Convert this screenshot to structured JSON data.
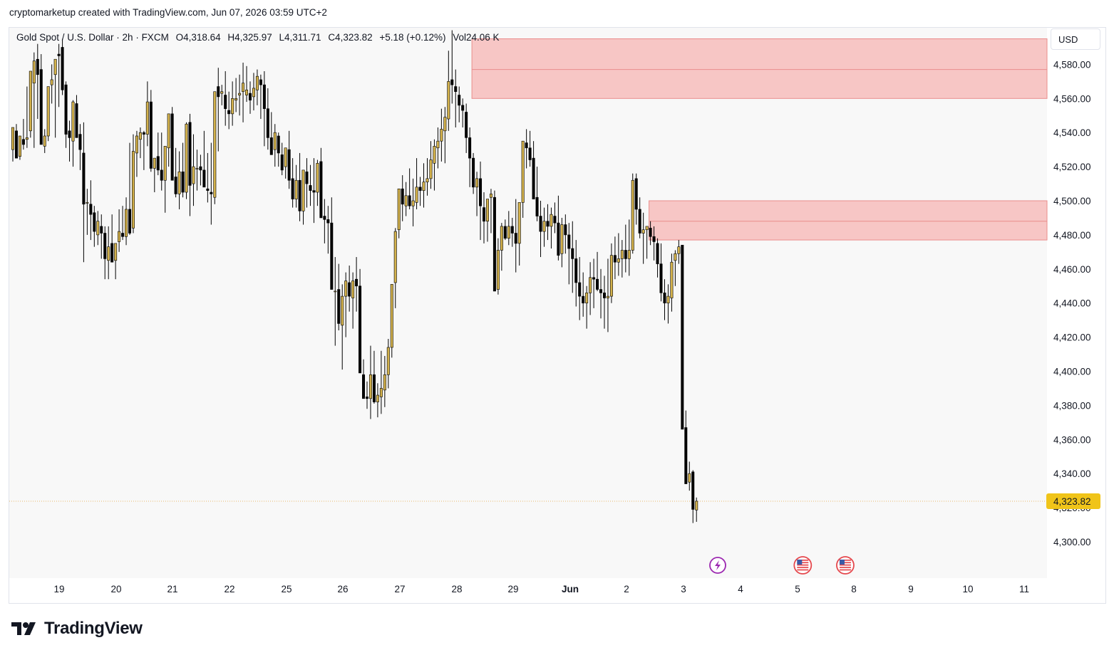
{
  "header": {
    "caption": "cryptomarketup created with TradingView.com, Jun 07, 2026 03:59 UTC+2"
  },
  "legend": {
    "symbol": "Gold Spot / U.S. Dollar · 2h · FXCM",
    "open": "O4,318.64",
    "high": "H4,325.97",
    "low": "L4,311.71",
    "close": "C4,323.82",
    "change": "+5.18 (+0.12%)",
    "volume": "Vol24.06 K"
  },
  "currency": "USD",
  "brand": {
    "name": "TradingView"
  },
  "chart_data": {
    "type": "candlestick",
    "symbol": "Gold Spot / U.S. Dollar",
    "interval": "2h",
    "ylim": [
      4282,
      4602
    ],
    "y_ticks": [
      4300,
      4320,
      4340,
      4360,
      4380,
      4400,
      4420,
      4440,
      4460,
      4480,
      4500,
      4520,
      4540,
      4560,
      4580
    ],
    "y_tick_labels": [
      "4,300.00",
      "4,320.00",
      "4,340.00",
      "4,360.00",
      "4,380.00",
      "4,400.00",
      "4,420.00",
      "4,440.00",
      "4,460.00",
      "4,480.00",
      "4,500.00",
      "4,520.00",
      "4,540.00",
      "4,560.00",
      "4,580.00"
    ],
    "x_labels": [
      "19",
      "20",
      "21",
      "22",
      "25",
      "26",
      "27",
      "28",
      "29",
      "Jun",
      "2",
      "3",
      "4",
      "5",
      "8",
      "9",
      "10",
      "11"
    ],
    "last_price": 4323.82,
    "last_price_label": "4,323.82",
    "colors": {
      "up": "#d4b24c",
      "down": "#000000",
      "zone": "#f7c6c5",
      "zone_line": "#e98d8c",
      "price_tag": "#f0c419",
      "price_line": "#e8b86d"
    },
    "zones": [
      {
        "from_bar": 130,
        "top": 4595,
        "bottom": 4560,
        "mid": 4577
      },
      {
        "from_bar": 180,
        "top": 4500,
        "bottom": 4477,
        "mid": 4488
      }
    ],
    "events": [
      {
        "bar": 200,
        "kind": "lightning"
      },
      {
        "bar": 223,
        "kind": "us-flag"
      },
      {
        "bar": 235,
        "kind": "us-flag"
      }
    ],
    "candles_ohlc": [
      [
        4530,
        4535,
        4523,
        4543
      ],
      [
        4541,
        4545,
        4527,
        4525
      ],
      [
        4526,
        4538,
        4524,
        4538
      ],
      [
        4536,
        4548,
        4530,
        4533
      ],
      [
        4536,
        4567,
        4531,
        4537
      ],
      [
        4541,
        4572,
        4537,
        4576
      ],
      [
        4569,
        4587,
        4531,
        4582
      ],
      [
        4583,
        4592,
        4548,
        4574
      ],
      [
        4577,
        4586,
        4534,
        4533
      ],
      [
        4532,
        4542,
        4528,
        4538
      ],
      [
        4538,
        4560,
        4535,
        4567
      ],
      [
        4568,
        4580,
        4557,
        4571
      ],
      [
        4574,
        4579,
        4537,
        4583
      ],
      [
        4586,
        4592,
        4555,
        4585
      ],
      [
        4590,
        4595,
        4562,
        4565
      ],
      [
        4568,
        4570,
        4531,
        4539
      ],
      [
        4541,
        4547,
        4523,
        4537
      ],
      [
        4535,
        4559,
        4520,
        4558
      ],
      [
        4557,
        4562,
        4537,
        4537
      ],
      [
        4539,
        4545,
        4518,
        4530
      ],
      [
        4528,
        4546,
        4464,
        4498
      ],
      [
        4499,
        4507,
        4480,
        4499
      ],
      [
        4498,
        4512,
        4477,
        4492
      ],
      [
        4493,
        4497,
        4473,
        4482
      ],
      [
        4480,
        4494,
        4474,
        4488
      ],
      [
        4485,
        4492,
        4466,
        4481
      ],
      [
        4481,
        4485,
        4454,
        4466
      ],
      [
        4465,
        4485,
        4454,
        4473
      ],
      [
        4475,
        4492,
        4470,
        4464
      ],
      [
        4465,
        4472,
        4454,
        4475
      ],
      [
        4476,
        4495,
        4470,
        4482
      ],
      [
        4481,
        4497,
        4477,
        4479
      ],
      [
        4479,
        4502,
        4474,
        4495
      ],
      [
        4495,
        4534,
        4480,
        4481
      ],
      [
        4484,
        4539,
        4481,
        4529
      ],
      [
        4528,
        4541,
        4514,
        4538
      ],
      [
        4536,
        4543,
        4525,
        4540
      ],
      [
        4540,
        4541,
        4518,
        4539
      ],
      [
        4539,
        4570,
        4532,
        4558
      ],
      [
        4558,
        4565,
        4517,
        4519
      ],
      [
        4519,
        4525,
        4505,
        4525
      ],
      [
        4526,
        4540,
        4515,
        4518
      ],
      [
        4518,
        4540,
        4506,
        4512
      ],
      [
        4512,
        4530,
        4493,
        4532
      ],
      [
        4531,
        4551,
        4520,
        4551
      ],
      [
        4551,
        4555,
        4512,
        4512
      ],
      [
        4514,
        4531,
        4502,
        4504
      ],
      [
        4504,
        4529,
        4495,
        4517
      ],
      [
        4517,
        4534,
        4502,
        4505
      ],
      [
        4505,
        4546,
        4501,
        4545
      ],
      [
        4546,
        4551,
        4491,
        4509
      ],
      [
        4510,
        4539,
        4497,
        4520
      ],
      [
        4519,
        4530,
        4506,
        4519
      ],
      [
        4520,
        4527,
        4509,
        4518
      ],
      [
        4518,
        4541,
        4509,
        4508
      ],
      [
        4507,
        4528,
        4499,
        4506
      ],
      [
        4505,
        4534,
        4486,
        4504
      ],
      [
        4502,
        4541,
        4498,
        4564
      ],
      [
        4567,
        4578,
        4529,
        4561
      ],
      [
        4563,
        4568,
        4556,
        4564
      ],
      [
        4562,
        4576,
        4544,
        4554
      ],
      [
        4553,
        4564,
        4542,
        4551
      ],
      [
        4551,
        4570,
        4544,
        4560
      ],
      [
        4559,
        4572,
        4552,
        4560
      ],
      [
        4562,
        4574,
        4550,
        4563
      ],
      [
        4564,
        4581,
        4546,
        4569
      ],
      [
        4562,
        4579,
        4558,
        4565
      ],
      [
        4563,
        4570,
        4551,
        4559
      ],
      [
        4561,
        4575,
        4553,
        4566
      ],
      [
        4565,
        4577,
        4556,
        4573
      ],
      [
        4571,
        4574,
        4548,
        4568
      ],
      [
        4568,
        4576,
        4532,
        4554
      ],
      [
        4554,
        4566,
        4530,
        4537
      ],
      [
        4537,
        4552,
        4530,
        4527
      ],
      [
        4530,
        4545,
        4520,
        4540
      ],
      [
        4538,
        4540,
        4520,
        4528
      ],
      [
        4527,
        4534,
        4515,
        4518
      ],
      [
        4520,
        4531,
        4513,
        4531
      ],
      [
        4530,
        4541,
        4507,
        4512
      ],
      [
        4513,
        4525,
        4496,
        4501
      ],
      [
        4501,
        4521,
        4496,
        4512
      ],
      [
        4512,
        4528,
        4488,
        4494
      ],
      [
        4494,
        4517,
        4486,
        4518
      ],
      [
        4517,
        4525,
        4496,
        4510
      ],
      [
        4509,
        4521,
        4497,
        4506
      ],
      [
        4506,
        4525,
        4487,
        4505
      ],
      [
        4505,
        4524,
        4497,
        4522
      ],
      [
        4523,
        4531,
        4490,
        4490
      ],
      [
        4491,
        4501,
        4475,
        4489
      ],
      [
        4489,
        4497,
        4469,
        4487
      ],
      [
        4487,
        4502,
        4451,
        4448
      ],
      [
        4447,
        4467,
        4415,
        4447
      ],
      [
        4448,
        4463,
        4424,
        4428
      ],
      [
        4427,
        4451,
        4401,
        4444
      ],
      [
        4444,
        4458,
        4420,
        4453
      ],
      [
        4452,
        4462,
        4435,
        4444
      ],
      [
        4443,
        4458,
        4425,
        4453
      ],
      [
        4454,
        4467,
        4435,
        4450
      ],
      [
        4450,
        4460,
        4416,
        4399
      ],
      [
        4398,
        4407,
        4387,
        4384
      ],
      [
        4385,
        4394,
        4378,
        4384
      ],
      [
        4384,
        4415,
        4372,
        4398
      ],
      [
        4398,
        4412,
        4381,
        4382
      ],
      [
        4382,
        4393,
        4373,
        4386
      ],
      [
        4385,
        4412,
        4375,
        4390
      ],
      [
        4389,
        4409,
        4379,
        4398
      ],
      [
        4398,
        4419,
        4390,
        4414
      ],
      [
        4414,
        4437,
        4408,
        4451
      ],
      [
        4452,
        4484,
        4437,
        4482
      ],
      [
        4483,
        4498,
        4478,
        4507
      ],
      [
        4507,
        4515,
        4488,
        4498
      ],
      [
        4497,
        4511,
        4491,
        4503
      ],
      [
        4503,
        4519,
        4495,
        4497
      ],
      [
        4497,
        4513,
        4485,
        4500
      ],
      [
        4499,
        4525,
        4495,
        4508
      ],
      [
        4508,
        4514,
        4497,
        4506
      ],
      [
        4506,
        4522,
        4496,
        4511
      ],
      [
        4511,
        4525,
        4503,
        4513
      ],
      [
        4513,
        4535,
        4507,
        4524
      ],
      [
        4522,
        4536,
        4506,
        4532
      ],
      [
        4531,
        4543,
        4519,
        4535
      ],
      [
        4535,
        4554,
        4523,
        4542
      ],
      [
        4541,
        4555,
        4522,
        4549
      ],
      [
        4548,
        4588,
        4541,
        4570
      ],
      [
        4571,
        4600,
        4557,
        4568
      ],
      [
        4567,
        4577,
        4543,
        4564
      ],
      [
        4562,
        4567,
        4546,
        4556
      ],
      [
        4556,
        4560,
        4543,
        4553
      ],
      [
        4552,
        4557,
        4528,
        4537
      ],
      [
        4537,
        4543,
        4508,
        4525
      ],
      [
        4525,
        4528,
        4504,
        4508
      ],
      [
        4508,
        4517,
        4491,
        4513
      ],
      [
        4513,
        4523,
        4477,
        4497
      ],
      [
        4496,
        4505,
        4475,
        4488
      ],
      [
        4488,
        4495,
        4476,
        4501
      ],
      [
        4502,
        4507,
        4481,
        4504
      ],
      [
        4502,
        4506,
        4459,
        4447
      ],
      [
        4448,
        4478,
        4445,
        4471
      ],
      [
        4471,
        4487,
        4459,
        4485
      ],
      [
        4485,
        4489,
        4477,
        4478
      ],
      [
        4478,
        4494,
        4474,
        4485
      ],
      [
        4485,
        4490,
        4473,
        4481
      ],
      [
        4481,
        4501,
        4458,
        4475
      ],
      [
        4475,
        4497,
        4462,
        4499
      ],
      [
        4499,
        4527,
        4490,
        4535
      ],
      [
        4534,
        4542,
        4519,
        4531
      ],
      [
        4531,
        4541,
        4520,
        4524
      ],
      [
        4525,
        4535,
        4510,
        4501
      ],
      [
        4502,
        4520,
        4488,
        4491
      ],
      [
        4491,
        4500,
        4467,
        4482
      ],
      [
        4482,
        4496,
        4473,
        4488
      ],
      [
        4488,
        4498,
        4477,
        4485
      ],
      [
        4485,
        4496,
        4472,
        4492
      ],
      [
        4491,
        4499,
        4481,
        4487
      ],
      [
        4487,
        4503,
        4465,
        4468
      ],
      [
        4469,
        4490,
        4461,
        4486
      ],
      [
        4486,
        4492,
        4469,
        4480
      ],
      [
        4480,
        4487,
        4451,
        4472
      ],
      [
        4472,
        4488,
        4446,
        4466
      ],
      [
        4466,
        4477,
        4438,
        4452
      ],
      [
        4452,
        4467,
        4430,
        4444
      ],
      [
        4444,
        4458,
        4432,
        4440
      ],
      [
        4440,
        4450,
        4425,
        4446
      ],
      [
        4446,
        4464,
        4433,
        4455
      ],
      [
        4455,
        4466,
        4437,
        4454
      ],
      [
        4454,
        4470,
        4447,
        4448
      ],
      [
        4448,
        4460,
        4431,
        4446
      ],
      [
        4446,
        4456,
        4425,
        4443
      ],
      [
        4443,
        4466,
        4423,
        4444
      ],
      [
        4444,
        4475,
        4440,
        4468
      ],
      [
        4468,
        4479,
        4454,
        4464
      ],
      [
        4464,
        4481,
        4456,
        4466
      ],
      [
        4466,
        4477,
        4455,
        4471
      ],
      [
        4471,
        4486,
        4458,
        4466
      ],
      [
        4466,
        4489,
        4456,
        4471
      ],
      [
        4471,
        4516,
        4469,
        4512
      ],
      [
        4513,
        4516,
        4486,
        4495
      ],
      [
        4495,
        4502,
        4478,
        4481
      ],
      [
        4481,
        4493,
        4463,
        4483
      ],
      [
        4483,
        4485,
        4466,
        4485
      ],
      [
        4484,
        4488,
        4474,
        4479
      ],
      [
        4479,
        4485,
        4465,
        4476
      ],
      [
        4475,
        4478,
        4455,
        4463
      ],
      [
        4463,
        4475,
        4441,
        4446
      ],
      [
        4446,
        4454,
        4430,
        4440
      ],
      [
        4440,
        4451,
        4428,
        4444
      ],
      [
        4443,
        4469,
        4435,
        4464
      ],
      [
        4465,
        4471,
        4450,
        4469
      ],
      [
        4469,
        4477,
        4463,
        4473
      ],
      [
        4474,
        4474,
        4378,
        4366
      ],
      [
        4367,
        4377,
        4334,
        4334
      ],
      [
        4335,
        4347,
        4330,
        4340
      ],
      [
        4341,
        4342,
        4311,
        4319
      ],
      [
        4318.64,
        4325.97,
        4311.71,
        4323.82
      ]
    ]
  }
}
